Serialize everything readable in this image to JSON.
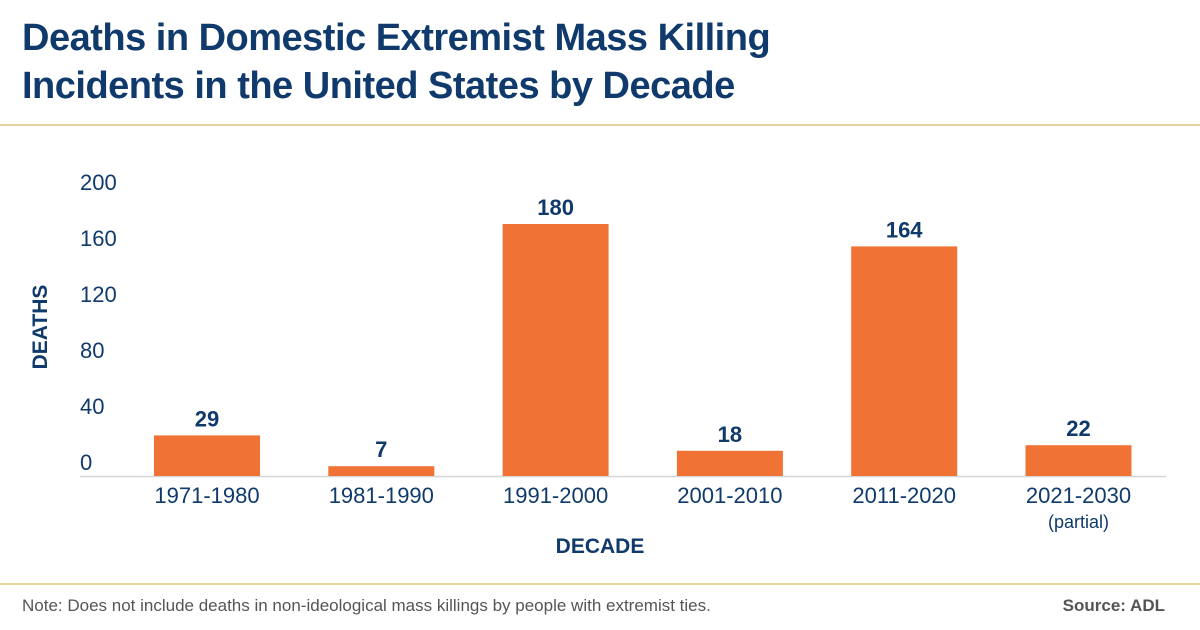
{
  "title_line1": "Deaths in Domestic Extremist Mass Killing",
  "title_line2": "Incidents in the United States by Decade",
  "note": "Note: Does not include deaths in non-ideological mass killings by people with extremist ties.",
  "source": "Source: ADL",
  "colors": {
    "bar": "#f07235",
    "text": "#0f3a6b",
    "rule": "#e8d39a"
  },
  "chart_data": {
    "type": "bar",
    "categories": [
      "1971-1980",
      "1981-1990",
      "1991-2000",
      "2001-2010",
      "2011-2020",
      "2021-2030"
    ],
    "category_sublabels": [
      "",
      "",
      "",
      "",
      "",
      "(partial)"
    ],
    "values": [
      29,
      7,
      180,
      18,
      164,
      22
    ],
    "xlabel": "DECADE",
    "ylabel": "DEATHS",
    "ylim": [
      0,
      200
    ],
    "yticks": [
      0,
      40,
      80,
      120,
      160,
      200
    ],
    "grid": false,
    "data_labels": true
  }
}
